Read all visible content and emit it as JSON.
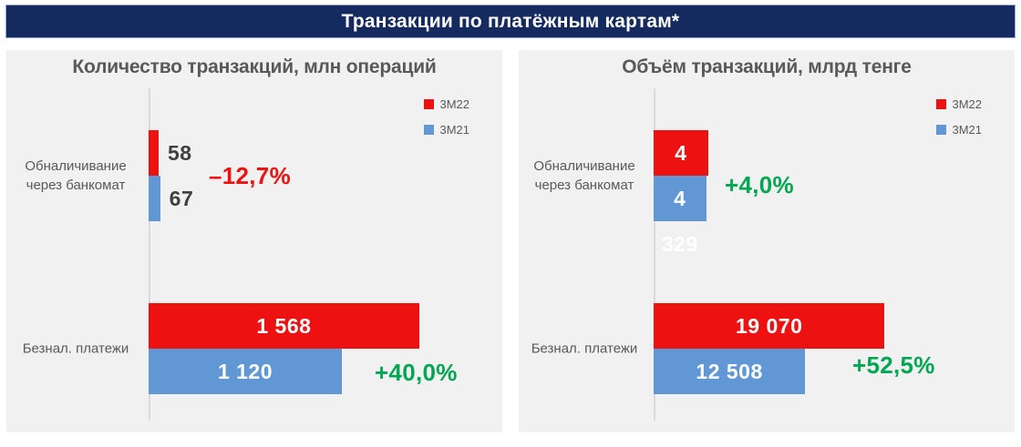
{
  "page": {
    "title": "Транзакции по платёжным картам*"
  },
  "legend": [
    {
      "label": "3М22",
      "color": "#EE1111"
    },
    {
      "label": "3М21",
      "color": "#6197D5"
    }
  ],
  "colors": {
    "header_bg": "#152A5F",
    "panel_bg": "#F1F1F1",
    "series_3m22": "#EE1111",
    "series_3m21": "#6197D5",
    "positive_change": "#00A651",
    "negative_change": "#EE1111",
    "title_text": "#595959"
  },
  "chart_data": [
    {
      "type": "bar",
      "orientation": "horizontal",
      "title": "Количество транзакций, млн операций",
      "unit": "млн операций",
      "categories": [
        "Обналичивание через банкомат",
        "Безнал. платежи"
      ],
      "series": [
        {
          "name": "3М22",
          "color": "#EE1111",
          "values": [
            58,
            1568
          ],
          "labels": [
            "58",
            "1 568"
          ]
        },
        {
          "name": "3М21",
          "color": "#6197D5",
          "values": [
            67,
            1120
          ],
          "labels": [
            "67",
            "1 120"
          ]
        }
      ],
      "changes": [
        {
          "text": "–12,7%",
          "color": "#EE1111"
        },
        {
          "text": "+40,0%",
          "color": "#00A651"
        }
      ],
      "axis_max": 2050,
      "grid": false,
      "legend_position": "top-right"
    },
    {
      "type": "bar",
      "orientation": "horizontal",
      "title": "Объём транзакций, млрд тенге",
      "unit": "млрд тенге",
      "categories": [
        "Обналичивание через банкомат",
        "Безнал. платежи"
      ],
      "series": [
        {
          "name": "3М22",
          "color": "#EE1111",
          "values": [
            4503,
            19070
          ],
          "labels": [
            "4 503",
            "19 070"
          ]
        },
        {
          "name": "3М21",
          "color": "#6197D5",
          "values": [
            4329,
            12508
          ],
          "labels": [
            "4 329",
            "12 508"
          ]
        }
      ],
      "changes": [
        {
          "text": "+4,0%",
          "color": "#00A651"
        },
        {
          "text": "+52,5%",
          "color": "#00A651"
        }
      ],
      "axis_max": 29800,
      "grid": false,
      "legend_position": "top-right"
    }
  ]
}
